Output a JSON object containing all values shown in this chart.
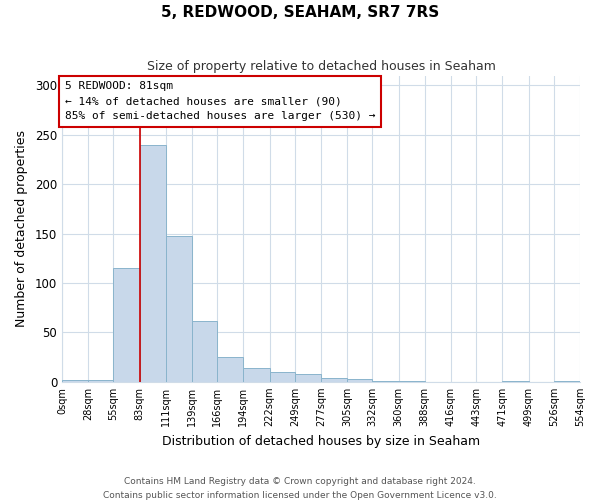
{
  "title": "5, REDWOOD, SEAHAM, SR7 7RS",
  "subtitle": "Size of property relative to detached houses in Seaham",
  "xlabel": "Distribution of detached houses by size in Seaham",
  "ylabel": "Number of detached properties",
  "footer_line1": "Contains HM Land Registry data © Crown copyright and database right 2024.",
  "footer_line2": "Contains public sector information licensed under the Open Government Licence v3.0.",
  "bin_edges": [
    0,
    28,
    55,
    83,
    111,
    139,
    166,
    194,
    222,
    249,
    277,
    305,
    332,
    360,
    388,
    416,
    443,
    471,
    499,
    526,
    554
  ],
  "bar_heights": [
    2,
    2,
    115,
    240,
    148,
    62,
    25,
    14,
    10,
    8,
    4,
    3,
    1,
    1,
    0,
    0,
    0,
    1,
    0,
    1
  ],
  "bar_color": "#c8d8ea",
  "bar_edge_color": "#8ab4cc",
  "bar_edge_width": 0.7,
  "redline_x": 83,
  "redline_color": "#cc0000",
  "annotation_title": "5 REDWOOD: 81sqm",
  "annotation_line1": "← 14% of detached houses are smaller (90)",
  "annotation_line2": "85% of semi-detached houses are larger (530) →",
  "annotation_box_color": "#ffffff",
  "annotation_box_edge": "#cc0000",
  "ylim": [
    0,
    310
  ],
  "yticks": [
    0,
    50,
    100,
    150,
    200,
    250,
    300
  ],
  "background_color": "#ffffff",
  "grid_color": "#d0dce8",
  "title_fontsize": 11,
  "subtitle_fontsize": 9
}
